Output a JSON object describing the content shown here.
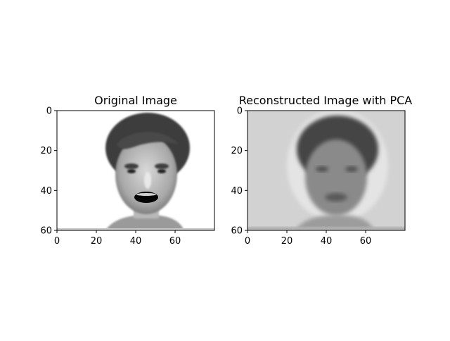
{
  "chart_data": [
    {
      "type": "heatmap",
      "title": "Original Image",
      "xlabel": "",
      "ylabel": "",
      "xlim": [
        0,
        80
      ],
      "ylim": [
        60,
        0
      ],
      "xticks": [
        0,
        20,
        40,
        60
      ],
      "yticks": [
        0,
        20,
        40,
        60
      ],
      "colormap": "gray",
      "content": "grayscale face image (80x60 px)"
    },
    {
      "type": "heatmap",
      "title": "Reconstructed Image with PCA",
      "xlabel": "",
      "ylabel": "",
      "xlim": [
        0,
        80
      ],
      "ylim": [
        60,
        0
      ],
      "xticks": [
        0,
        20,
        40,
        60
      ],
      "yticks": [
        0,
        20,
        40,
        60
      ],
      "colormap": "gray",
      "content": "blurred grayscale face reconstruction (80x60 px)"
    }
  ]
}
